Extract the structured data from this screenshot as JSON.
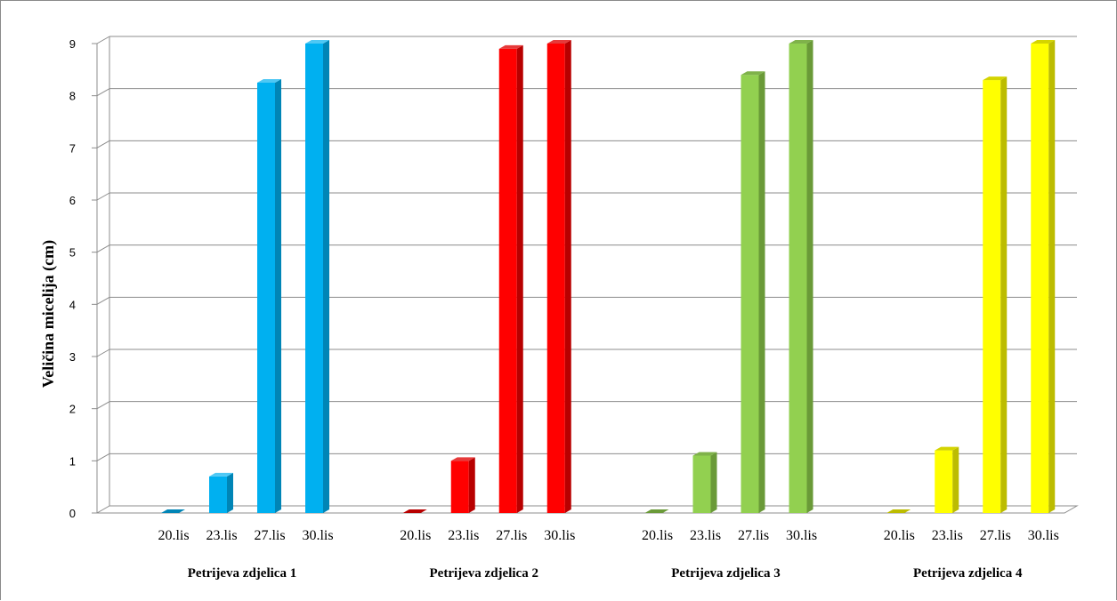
{
  "chart_data": {
    "type": "bar",
    "ylabel": "Veličina micelija (cm)",
    "ylim": [
      0,
      9
    ],
    "yticks": [
      "0",
      "1",
      "2",
      "3",
      "4",
      "5",
      "6",
      "7",
      "8",
      "9"
    ],
    "grid": true,
    "groups": [
      {
        "name": "Petrijeva zdjelica 1",
        "color": "#00b0f0",
        "dark": "#0085b6",
        "top": "#4fc8f4",
        "categories": [
          "20.lis",
          "23.lis",
          "27.lis",
          "30.lis"
        ],
        "values": [
          0,
          0.7,
          8.25,
          9
        ]
      },
      {
        "name": "Petrijeva zdjelica 2",
        "color": "#ff0000",
        "dark": "#b80000",
        "top": "#e63a3a",
        "categories": [
          "20.lis",
          "23.lis",
          "27.lis",
          "30.lis"
        ],
        "values": [
          0,
          1,
          8.9,
          9
        ]
      },
      {
        "name": "Petrijeva zdjelica 3",
        "color": "#92d050",
        "dark": "#6a9a38",
        "top": "#7fb24a",
        "categories": [
          "20.lis",
          "23.lis",
          "27.lis",
          "30.lis"
        ],
        "values": [
          0,
          1.1,
          8.4,
          9
        ]
      },
      {
        "name": "Petrijeva zdjelica 4",
        "color": "#ffff00",
        "dark": "#bcbc00",
        "top": "#d4d400",
        "categories": [
          "20.lis",
          "23.lis",
          "27.lis",
          "30.lis"
        ],
        "values": [
          0,
          1.2,
          8.3,
          9
        ]
      }
    ]
  }
}
